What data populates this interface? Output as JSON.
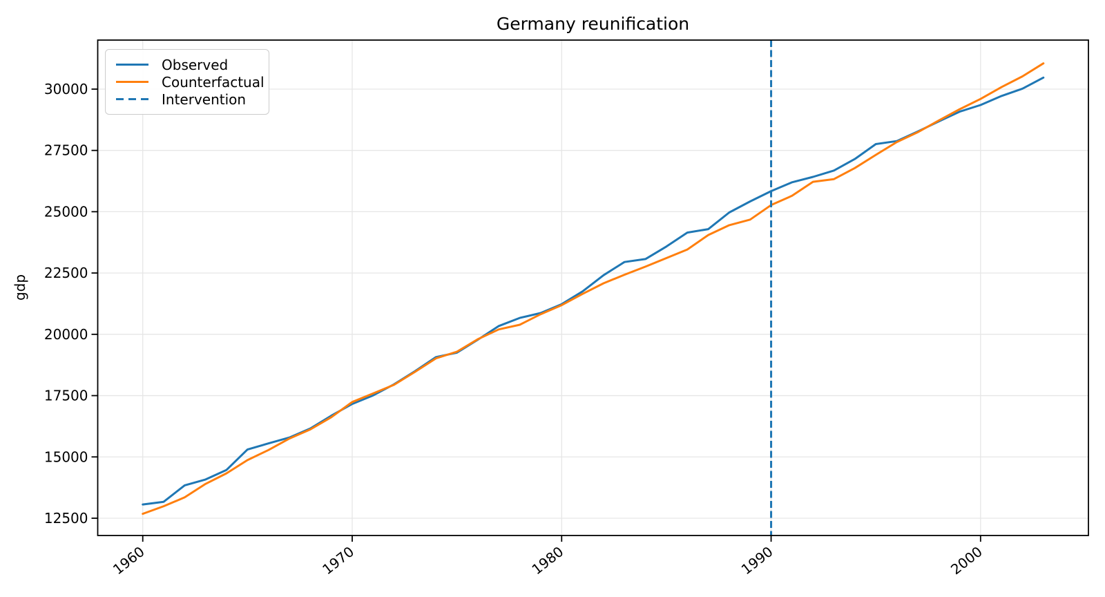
{
  "chart_data": {
    "type": "line",
    "title": "Germany reunification",
    "xlabel": "",
    "ylabel": "gdp",
    "x": [
      1960,
      1961,
      1962,
      1963,
      1964,
      1965,
      1966,
      1967,
      1968,
      1969,
      1970,
      1971,
      1972,
      1973,
      1974,
      1975,
      1976,
      1977,
      1978,
      1979,
      1980,
      1981,
      1982,
      1983,
      1984,
      1985,
      1986,
      1987,
      1988,
      1989,
      1990,
      1991,
      1992,
      1993,
      1994,
      1995,
      1996,
      1997,
      1998,
      1999,
      2000,
      2001,
      2002,
      2003
    ],
    "series": [
      {
        "name": "Observed",
        "color": "#1f77b4",
        "style": "solid",
        "values": [
          13060,
          13170,
          13840,
          14080,
          14470,
          15300,
          15550,
          15790,
          16160,
          16680,
          17160,
          17510,
          17960,
          18500,
          19070,
          19250,
          19780,
          20340,
          20670,
          20870,
          21230,
          21750,
          22410,
          22950,
          23070,
          23580,
          24150,
          24290,
          24970,
          25420,
          25840,
          26200,
          26420,
          26680,
          27150,
          27760,
          27880,
          28270,
          28680,
          29080,
          29350,
          29720,
          30020,
          30470
        ]
      },
      {
        "name": "Counterfactual",
        "color": "#ff7f0e",
        "style": "solid",
        "values": [
          12680,
          12990,
          13350,
          13900,
          14330,
          14870,
          15280,
          15750,
          16120,
          16620,
          17240,
          17590,
          17940,
          18470,
          19020,
          19290,
          19800,
          20200,
          20390,
          20820,
          21190,
          21650,
          22080,
          22430,
          22760,
          23110,
          23460,
          24050,
          24450,
          24680,
          25270,
          25650,
          26220,
          26330,
          26780,
          27320,
          27840,
          28240,
          28720,
          29180,
          29600,
          30080,
          30520,
          31050
        ]
      }
    ],
    "intervention": {
      "name": "Intervention",
      "x": 1990,
      "color": "#1f77b4",
      "style": "dashed"
    },
    "axes": {
      "xlim": [
        1957.85,
        2005.15
      ],
      "ylim": [
        11795,
        32000
      ],
      "xticks": [
        1960,
        1970,
        1980,
        1990,
        2000
      ],
      "yticks": [
        12500,
        15000,
        17500,
        20000,
        22500,
        25000,
        27500,
        30000
      ],
      "x_tick_rotation_deg": 38,
      "grid": true,
      "grid_color": "#e6e6e6",
      "spine_color": "#000000",
      "legend_position": "upper left"
    }
  }
}
